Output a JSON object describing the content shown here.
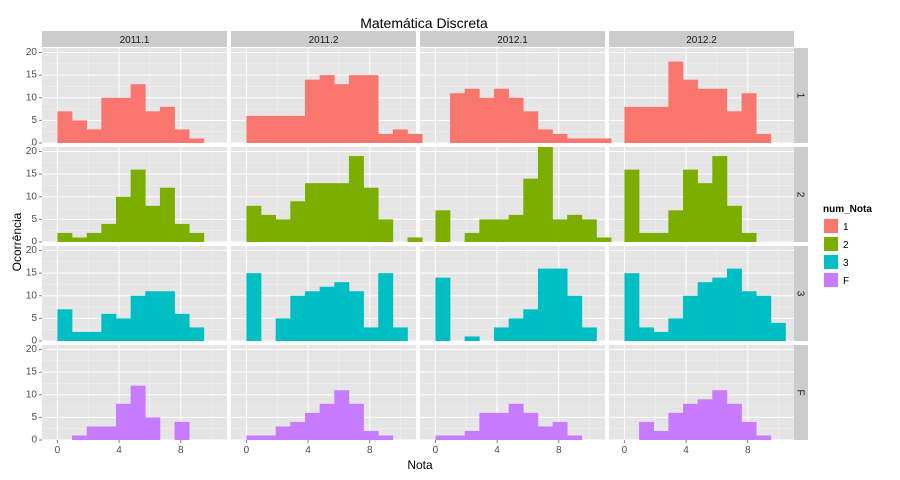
{
  "chart_data": {
    "type": "bar",
    "subtype": "faceted-histogram",
    "title": "Matemática Discreta",
    "xlabel": "Nota",
    "ylabel": "Ocorrência",
    "xlim": [
      -1,
      11
    ],
    "ylim": [
      0,
      21
    ],
    "x_ticks": [
      0,
      4,
      8
    ],
    "y_ticks": [
      0,
      5,
      10,
      15,
      20
    ],
    "bin_width": 0.95,
    "grid": true,
    "legend_position": "right",
    "facet_columns": [
      "2011.1",
      "2011.2",
      "2012.1",
      "2012.2"
    ],
    "facet_rows": [
      "1",
      "2",
      "3",
      "F"
    ],
    "legend": {
      "title": "num_Nota",
      "entries": [
        {
          "label": "1",
          "color": "#F8766D"
        },
        {
          "label": "2",
          "color": "#7CAE00"
        },
        {
          "label": "3",
          "color": "#00BFC4"
        },
        {
          "label": "F",
          "color": "#C77CFF"
        }
      ]
    },
    "panels": [
      {
        "row": "1",
        "col": "2011.1",
        "bin_start": 0.0,
        "counts": [
          7,
          5,
          3,
          10,
          10,
          13,
          7,
          8,
          3,
          1
        ]
      },
      {
        "row": "1",
        "col": "2011.2",
        "bin_start": 0.0,
        "counts": [
          6,
          6,
          6,
          6,
          14,
          15,
          13,
          15,
          15,
          2,
          3,
          2
        ]
      },
      {
        "row": "1",
        "col": "2012.1",
        "bin_start": 0.95,
        "counts": [
          11,
          12,
          10,
          12,
          10,
          7,
          3,
          2,
          1,
          1,
          1
        ]
      },
      {
        "row": "1",
        "col": "2012.2",
        "bin_start": 0.0,
        "counts": [
          8,
          8,
          8,
          18,
          14,
          12,
          12,
          7,
          11,
          2
        ]
      },
      {
        "row": "2",
        "col": "2011.1",
        "bin_start": 0.0,
        "counts": [
          2,
          1,
          2,
          4,
          10,
          16,
          8,
          12,
          4,
          2
        ]
      },
      {
        "row": "2",
        "col": "2011.2",
        "bin_start": 0.0,
        "counts": [
          8,
          6,
          5,
          9,
          13,
          13,
          13,
          19,
          12,
          5,
          0,
          1
        ]
      },
      {
        "row": "2",
        "col": "2012.1",
        "bin_start": 0.0,
        "counts": [
          7,
          0,
          2,
          5,
          5,
          6,
          14,
          21,
          5,
          6,
          5,
          1
        ]
      },
      {
        "row": "2",
        "col": "2012.2",
        "bin_start": 0.0,
        "counts": [
          16,
          2,
          2,
          7,
          16,
          13,
          19,
          8,
          2
        ]
      },
      {
        "row": "3",
        "col": "2011.1",
        "bin_start": 0.0,
        "counts": [
          7,
          2,
          2,
          6,
          5,
          10,
          11,
          11,
          6,
          3
        ]
      },
      {
        "row": "3",
        "col": "2011.2",
        "bin_start": 0.0,
        "counts": [
          15,
          0,
          5,
          10,
          11,
          12,
          13,
          11,
          3,
          15,
          3
        ]
      },
      {
        "row": "3",
        "col": "2012.1",
        "bin_start": 0.0,
        "counts": [
          14,
          0,
          1,
          0,
          3,
          5,
          7,
          16,
          16,
          10,
          3
        ]
      },
      {
        "row": "3",
        "col": "2012.2",
        "bin_start": 0.0,
        "counts": [
          15,
          3,
          2,
          5,
          10,
          13,
          14,
          16,
          11,
          10,
          4
        ]
      },
      {
        "row": "F",
        "col": "2011.1",
        "bin_start": 0.95,
        "counts": [
          1,
          3,
          3,
          8,
          12,
          5,
          0,
          4
        ]
      },
      {
        "row": "F",
        "col": "2011.2",
        "bin_start": 0.0,
        "counts": [
          1,
          1,
          3,
          4,
          6,
          8,
          11,
          8,
          2,
          1
        ]
      },
      {
        "row": "F",
        "col": "2012.1",
        "bin_start": 0.0,
        "counts": [
          1,
          1,
          2,
          6,
          6,
          8,
          6,
          3,
          4,
          1
        ]
      },
      {
        "row": "F",
        "col": "2012.2",
        "bin_start": 0.95,
        "counts": [
          4,
          2,
          6,
          8,
          9,
          11,
          8,
          4,
          1
        ]
      }
    ]
  }
}
